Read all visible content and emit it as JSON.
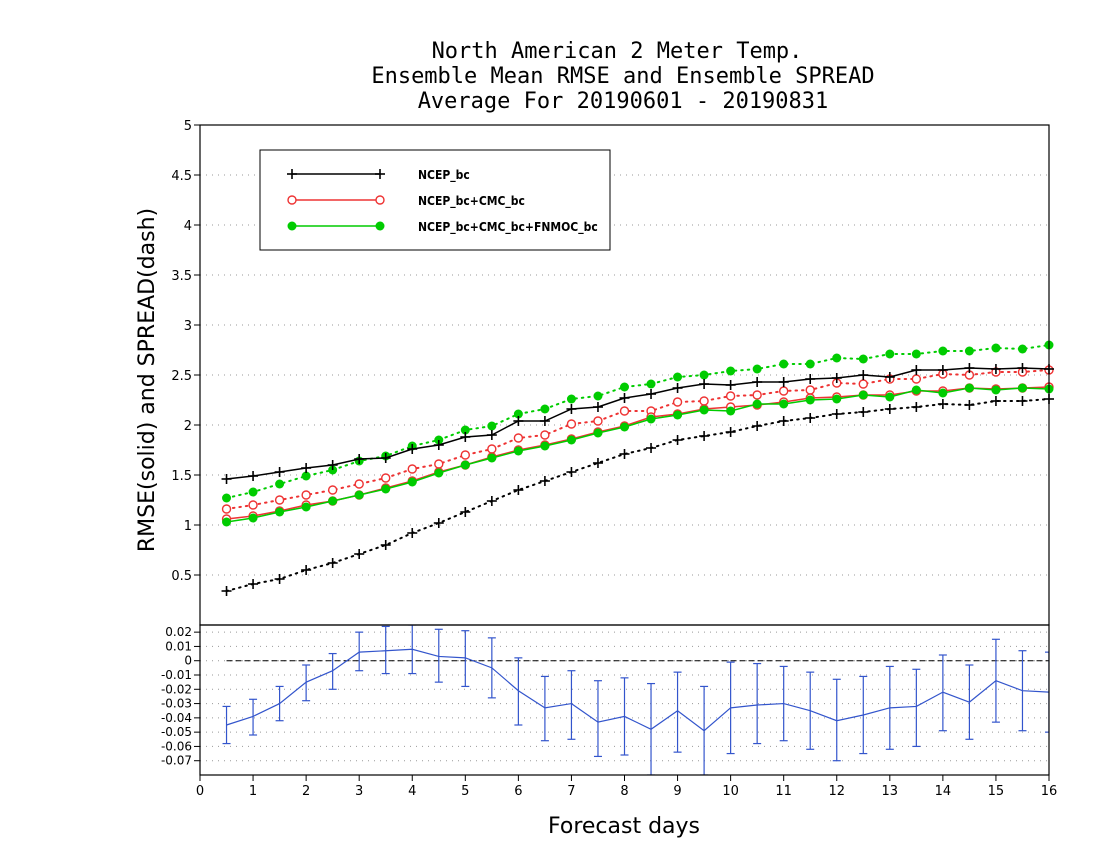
{
  "chart_data": [
    {
      "type": "line",
      "title": [
        "North American 2 Meter Temp.",
        "Ensemble Mean RMSE and Ensemble SPREAD",
        "Average For 20190601 - 20190831"
      ],
      "xlabel": "Forecast days",
      "ylabel": "RMSE(solid) and SPREAD(dash)",
      "xlim": [
        0,
        16
      ],
      "ylim": [
        0,
        5
      ],
      "x_ticks": [
        "0",
        "1",
        "2",
        "3",
        "4",
        "5",
        "6",
        "7",
        "8",
        "9",
        "10",
        "11",
        "12",
        "13",
        "14",
        "15",
        "16"
      ],
      "y_ticks": [
        "0.5",
        "1",
        "1.5",
        "2",
        "2.5",
        "3",
        "3.5",
        "4",
        "4.5",
        "5"
      ],
      "grid": "horizontal-dotted",
      "legend_position": "top-left",
      "x": [
        0.5,
        1,
        1.5,
        2,
        2.5,
        3,
        3.5,
        4,
        4.5,
        5,
        5.5,
        6,
        6.5,
        7,
        7.5,
        8,
        8.5,
        9,
        9.5,
        10,
        10.5,
        11,
        11.5,
        12,
        12.5,
        13,
        13.5,
        14,
        14.5,
        15,
        15.5,
        16
      ],
      "series": [
        {
          "name": "NCEP_bc",
          "metric": "rmse",
          "style": "solid",
          "marker": "plus",
          "color": "#000000",
          "values": [
            1.46,
            1.49,
            1.53,
            1.57,
            1.6,
            1.66,
            1.67,
            1.76,
            1.8,
            1.88,
            1.9,
            2.04,
            2.04,
            2.16,
            2.18,
            2.27,
            2.31,
            2.37,
            2.41,
            2.4,
            2.43,
            2.43,
            2.46,
            2.47,
            2.5,
            2.48,
            2.55,
            2.55,
            2.57,
            2.56,
            2.57,
            2.56
          ]
        },
        {
          "name": "NCEP_bc+CMC_bc",
          "metric": "rmse",
          "style": "solid",
          "marker": "open-circle",
          "color": "#ee3333",
          "values": [
            1.06,
            1.09,
            1.14,
            1.2,
            1.24,
            1.3,
            1.37,
            1.44,
            1.53,
            1.6,
            1.68,
            1.75,
            1.8,
            1.86,
            1.93,
            1.99,
            2.08,
            2.11,
            2.16,
            2.18,
            2.2,
            2.23,
            2.27,
            2.28,
            2.3,
            2.3,
            2.34,
            2.34,
            2.37,
            2.36,
            2.37,
            2.38
          ]
        },
        {
          "name": "NCEP_bc+CMC_bc+FNMOC_bc",
          "metric": "rmse",
          "style": "solid",
          "marker": "filled-circle",
          "color": "#00cc00",
          "values": [
            1.03,
            1.07,
            1.13,
            1.18,
            1.24,
            1.3,
            1.36,
            1.43,
            1.52,
            1.6,
            1.67,
            1.74,
            1.79,
            1.85,
            1.92,
            1.98,
            2.06,
            2.1,
            2.15,
            2.14,
            2.21,
            2.21,
            2.25,
            2.26,
            2.3,
            2.28,
            2.35,
            2.32,
            2.37,
            2.35,
            2.37,
            2.36
          ]
        },
        {
          "name": "NCEP_bc",
          "metric": "spread",
          "style": "dotted",
          "marker": "plus",
          "color": "#000000",
          "values": [
            0.34,
            0.41,
            0.46,
            0.55,
            0.62,
            0.71,
            0.8,
            0.92,
            1.02,
            1.13,
            1.24,
            1.35,
            1.44,
            1.53,
            1.62,
            1.71,
            1.77,
            1.85,
            1.89,
            1.93,
            1.99,
            2.04,
            2.07,
            2.11,
            2.13,
            2.16,
            2.18,
            2.21,
            2.2,
            2.24,
            2.24,
            2.26
          ]
        },
        {
          "name": "NCEP_bc+CMC_bc",
          "metric": "spread",
          "style": "dotted",
          "marker": "open-circle",
          "color": "#ee3333",
          "values": [
            1.16,
            1.2,
            1.25,
            1.3,
            1.35,
            1.41,
            1.47,
            1.56,
            1.61,
            1.7,
            1.76,
            1.87,
            1.9,
            2.01,
            2.04,
            2.14,
            2.14,
            2.23,
            2.24,
            2.29,
            2.3,
            2.34,
            2.35,
            2.42,
            2.41,
            2.46,
            2.46,
            2.51,
            2.5,
            2.53,
            2.53,
            2.55
          ]
        },
        {
          "name": "NCEP_bc+CMC_bc+FNMOC_bc",
          "metric": "spread",
          "style": "dotted",
          "marker": "filled-circle",
          "color": "#00cc00",
          "values": [
            1.27,
            1.33,
            1.41,
            1.49,
            1.55,
            1.64,
            1.69,
            1.79,
            1.85,
            1.95,
            1.99,
            2.11,
            2.16,
            2.26,
            2.29,
            2.38,
            2.41,
            2.48,
            2.5,
            2.54,
            2.56,
            2.61,
            2.61,
            2.67,
            2.66,
            2.71,
            2.71,
            2.74,
            2.74,
            2.77,
            2.76,
            2.8
          ]
        }
      ]
    },
    {
      "type": "line",
      "subtype": "errorbar",
      "xlim": [
        0,
        16
      ],
      "ylim": [
        -0.08,
        0.025
      ],
      "x_ticks": [
        "0",
        "1",
        "2",
        "3",
        "4",
        "5",
        "6",
        "7",
        "8",
        "9",
        "10",
        "11",
        "12",
        "13",
        "14",
        "15",
        "16"
      ],
      "y_ticks": [
        "0.02",
        "0.01",
        "0",
        "-0.01",
        "-0.02",
        "-0.03",
        "-0.04",
        "-0.05",
        "-0.06",
        "-0.07"
      ],
      "reference_line": 0,
      "color": "#3355cc",
      "x": [
        0.5,
        1,
        1.5,
        2,
        2.5,
        3,
        3.5,
        4,
        4.5,
        5,
        5.5,
        6,
        6.5,
        7,
        7.5,
        8,
        8.5,
        9,
        9.5,
        10,
        10.5,
        11,
        11.5,
        12,
        12.5,
        13,
        13.5,
        14,
        14.5,
        15,
        15.5,
        16
      ],
      "values": [
        -0.045,
        -0.039,
        -0.03,
        -0.015,
        -0.007,
        0.006,
        0.007,
        0.008,
        0.003,
        0.002,
        -0.005,
        -0.021,
        -0.033,
        -0.03,
        -0.043,
        -0.039,
        -0.048,
        -0.035,
        -0.049,
        -0.033,
        -0.031,
        -0.03,
        -0.035,
        -0.042,
        -0.038,
        -0.033,
        -0.032,
        -0.022,
        -0.029,
        -0.014,
        -0.021,
        -0.022
      ],
      "error_low": [
        -0.058,
        -0.052,
        -0.042,
        -0.028,
        -0.02,
        -0.007,
        -0.009,
        -0.009,
        -0.015,
        -0.018,
        -0.026,
        -0.045,
        -0.056,
        -0.055,
        -0.067,
        -0.066,
        -0.08,
        -0.064,
        -0.08,
        -0.065,
        -0.058,
        -0.056,
        -0.062,
        -0.07,
        -0.065,
        -0.062,
        -0.06,
        -0.049,
        -0.055,
        -0.043,
        -0.049,
        -0.05
      ],
      "error_high": [
        -0.032,
        -0.027,
        -0.018,
        -0.003,
        0.005,
        0.02,
        0.024,
        0.025,
        0.022,
        0.021,
        0.016,
        0.002,
        -0.011,
        -0.007,
        -0.014,
        -0.012,
        -0.016,
        -0.008,
        -0.018,
        -0.001,
        -0.002,
        -0.004,
        -0.008,
        -0.013,
        -0.011,
        -0.004,
        -0.006,
        0.004,
        -0.003,
        0.015,
        0.007,
        0.006
      ]
    }
  ]
}
